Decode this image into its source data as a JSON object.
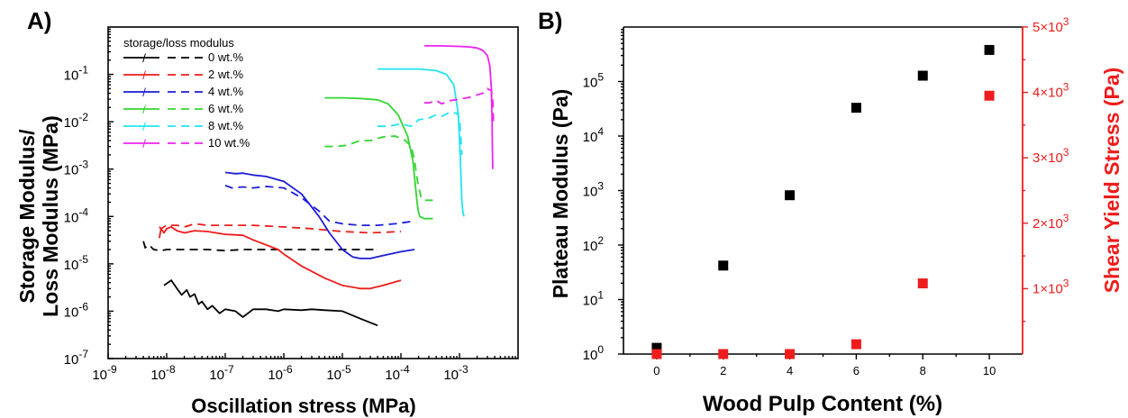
{
  "chart_data": [
    {
      "panel": "A)",
      "type": "line",
      "xlabel": "Oscillation stress (MPa)",
      "ylabel_lines": [
        "Storage Modulus/",
        "Loss Modulus (MPa)"
      ],
      "xscale": "log",
      "yscale": "log",
      "xlim": [
        1e-09,
        0.01
      ],
      "ylim": [
        1e-07,
        1
      ],
      "x_tick_labels": [
        "10",
        "10",
        "10",
        "10",
        "10",
        "10",
        "10",
        "10"
      ],
      "x_tick_exponents": [
        "-9",
        "-8",
        "-7",
        "-6",
        "-5",
        "-4",
        "-3",
        ""
      ],
      "x_ticks": [
        1e-09,
        1e-08,
        1e-07,
        1e-06,
        1e-05,
        0.0001,
        0.001
      ],
      "y_ticks": [
        1e-07,
        1e-06,
        1e-05,
        0.0001,
        0.001,
        0.01,
        0.1
      ],
      "y_tick_exponents": [
        "-7",
        "-6",
        "-5",
        "-4",
        "-3",
        "-2",
        "-1"
      ],
      "legend_title": "storage/loss modulus",
      "legend_placement": "top-left",
      "series": [
        {
          "name": "0 wt.%",
          "color": "#000000",
          "storage": {
            "x": [
              9e-09,
              1.2e-08,
              1.5e-08,
              1.8e-08,
              2.2e-08,
              2.5e-08,
              3e-08,
              3.5e-08,
              4e-08,
              5e-08,
              6e-08,
              8e-08,
              1e-07,
              1.5e-07,
              2e-07,
              3e-07,
              5e-07,
              8e-07,
              1e-06,
              2e-06,
              3e-06,
              5e-06,
              1e-05,
              2e-05,
              4e-05
            ],
            "y": [
              3.5e-06,
              4.5e-06,
              3e-06,
              2.2e-06,
              2.8e-06,
              2e-06,
              2.3e-06,
              1.4e-06,
              1.6e-06,
              1.1e-06,
              1.3e-06,
              9e-07,
              1.1e-06,
              1e-06,
              7.5e-07,
              1.1e-06,
              1.1e-06,
              1e-06,
              1.1e-06,
              1.05e-06,
              1.1e-06,
              1.05e-06,
              1e-06,
              7e-07,
              5e-07
            ]
          },
          "loss": {
            "x": [
              4e-09,
              4.3e-09,
              5e-09,
              6e-09,
              8e-09,
              1e-08,
              1.5e-08,
              2e-08,
              5e-08,
              1e-07,
              2e-07,
              5e-07,
              1e-06,
              3e-06,
              1e-05,
              4e-05
            ],
            "y": [
              3e-05,
              2.2e-05,
              2.5e-05,
              2e-05,
              1.9e-05,
              2e-05,
              2e-05,
              2e-05,
              2e-05,
              1.9e-05,
              2e-05,
              2e-05,
              2e-05,
              2e-05,
              2e-05,
              2e-05
            ]
          }
        },
        {
          "name": "2 wt.%",
          "color": "#ee1c1c",
          "storage": {
            "x": [
              7.5e-09,
              8e-09,
              9e-09,
              1e-08,
              1.2e-08,
              1.5e-08,
              2e-08,
              3e-08,
              5e-08,
              1e-07,
              2e-07,
              3e-07,
              5e-07,
              8e-07,
              1e-06,
              2e-06,
              5e-06,
              1e-05,
              2e-05,
              3e-05,
              5e-05,
              0.0001
            ],
            "y": [
              3.5e-05,
              5.5e-05,
              4.5e-05,
              5.5e-05,
              6e-05,
              5e-05,
              4.5e-05,
              5e-05,
              4.8e-05,
              4.2e-05,
              4e-05,
              3.2e-05,
              2.5e-05,
              2e-05,
              1.6e-05,
              9e-06,
              5e-06,
              3.5e-06,
              3e-06,
              3e-06,
              3.5e-06,
              4.5e-06
            ]
          },
          "loss": {
            "x": [
              7.5e-09,
              8e-09,
              1e-08,
              1.5e-08,
              2e-08,
              3e-08,
              5e-08,
              1e-07,
              3e-07,
              1e-06,
              3e-06,
              1e-05,
              3e-05,
              0.0001
            ],
            "y": [
              6e-05,
              5.5e-05,
              6.5e-05,
              6.5e-05,
              6e-05,
              7e-05,
              6.5e-05,
              6.5e-05,
              6.5e-05,
              6e-05,
              5.5e-05,
              4.8e-05,
              4.5e-05,
              4.8e-05
            ]
          }
        },
        {
          "name": "4 wt.%",
          "color": "#1c1cd6",
          "storage": {
            "x": [
              1e-07,
              1.5e-07,
              2e-07,
              3e-07,
              5e-07,
              1e-06,
              2e-06,
              4e-06,
              6e-06,
              1e-05,
              1.5e-05,
              2e-05,
              3e-05,
              5e-05,
              0.0001,
              0.00017
            ],
            "y": [
              0.00085,
              0.0008,
              0.00082,
              0.00075,
              0.0007,
              0.00055,
              0.0003,
              0.0001,
              4.5e-05,
              2e-05,
              1.4e-05,
              1.3e-05,
              1.3e-05,
              1.5e-05,
              1.8e-05,
              2e-05
            ]
          },
          "loss": {
            "x": [
              1e-07,
              1.3e-07,
              2e-07,
              3e-07,
              5e-07,
              1e-06,
              2e-06,
              4e-06,
              6e-06,
              1e-05,
              2e-05,
              4e-05,
              8e-05,
              0.00017
            ],
            "y": [
              0.00045,
              0.0004,
              0.00042,
              0.0004,
              0.00043,
              0.0004,
              0.00025,
              0.00013,
              8e-05,
              7e-05,
              6.5e-05,
              6.5e-05,
              7e-05,
              8e-05
            ]
          }
        },
        {
          "name": "6 wt.%",
          "color": "#33d633",
          "storage": {
            "x": [
              5e-06,
              1e-05,
              2e-05,
              4e-05,
              6e-05,
              9e-05,
              0.00013,
              0.00016,
              0.000175,
              0.000185,
              0.000195,
              0.00021,
              0.00025,
              0.00035
            ],
            "y": [
              0.032,
              0.032,
              0.031,
              0.029,
              0.024,
              0.014,
              0.005,
              0.0015,
              0.0005,
              0.00025,
              0.00014,
              0.0001,
              9e-05,
              9e-05
            ]
          },
          "loss": {
            "x": [
              5e-06,
              8e-06,
              1.2e-05,
              2e-05,
              3e-05,
              5e-05,
              8e-05,
              0.00012,
              0.00015,
              0.00017,
              0.00019,
              0.00022,
              0.00025,
              0.00035
            ],
            "y": [
              0.003,
              0.003,
              0.0032,
              0.004,
              0.004,
              0.0048,
              0.005,
              0.004,
              0.003,
              0.0016,
              0.0006,
              0.00025,
              0.00022,
              0.00022
            ]
          }
        },
        {
          "name": "8 wt.%",
          "color": "#22e4f0",
          "storage": {
            "x": [
              4e-05,
              0.0001,
              0.0002,
              0.0004,
              0.0006,
              0.0008,
              0.00095,
              0.00103,
              0.00107,
              0.0011,
              0.00115,
              0.0012
            ],
            "y": [
              0.13,
              0.13,
              0.13,
              0.12,
              0.1,
              0.06,
              0.015,
              0.002,
              0.0005,
              0.0002,
              0.00012,
              0.0001
            ]
          },
          "loss": {
            "x": [
              4e-05,
              6e-05,
              0.0001,
              0.00015,
              0.0002,
              0.0003,
              0.0004,
              0.0005,
              0.0007,
              0.0009,
              0.001,
              0.00105,
              0.0011
            ],
            "y": [
              0.008,
              0.008,
              0.009,
              0.008,
              0.011,
              0.012,
              0.014,
              0.013,
              0.016,
              0.015,
              0.012,
              0.005,
              0.002
            ]
          }
        },
        {
          "name": "10 wt.%",
          "color": "#ee22ee",
          "storage": {
            "x": [
              0.00025,
              0.0005,
              0.001,
              0.0015,
              0.002,
              0.0025,
              0.003,
              0.0033,
              0.0035,
              0.0036,
              0.00365,
              0.0037
            ],
            "y": [
              0.4,
              0.4,
              0.39,
              0.38,
              0.36,
              0.32,
              0.25,
              0.15,
              0.05,
              0.01,
              0.003,
              0.001
            ]
          },
          "loss": {
            "x": [
              0.00025,
              0.0003,
              0.0004,
              0.0005,
              0.0007,
              0.001,
              0.0015,
              0.002,
              0.0025,
              0.003,
              0.0035,
              0.0037,
              0.0038
            ],
            "y": [
              0.025,
              0.025,
              0.028,
              0.024,
              0.028,
              0.03,
              0.033,
              0.037,
              0.04,
              0.05,
              0.045,
              0.03,
              0.01
            ]
          }
        }
      ]
    },
    {
      "panel": "B)",
      "type": "scatter",
      "xlabel": "Wood Pulp Content (%)",
      "ylabel_left": "Plateau Modulus (Pa)",
      "ylabel_right": "Shear Yield Stress (Pa)",
      "x": [
        0,
        2,
        4,
        6,
        8,
        10
      ],
      "x_tick_labels": [
        "0",
        "2",
        "4",
        "6",
        "8",
        "10"
      ],
      "xlim": [
        -1,
        11
      ],
      "left_yscale": "log",
      "left_ylim": [
        1,
        1000000.0
      ],
      "left_y_ticks": [
        1,
        10,
        100,
        1000,
        10000,
        100000
      ],
      "left_y_tick_exponents": [
        "0",
        "1",
        "2",
        "3",
        "4",
        "5"
      ],
      "right_ylim": [
        0,
        5000
      ],
      "right_y_ticks": [
        1000,
        2000,
        3000,
        4000,
        5000
      ],
      "right_y_tick_labels": [
        "1×10",
        "2×10",
        "3×10",
        "4×10",
        "5×10"
      ],
      "right_y_tick_exponent": "3",
      "series": [
        {
          "name": "Plateau Modulus",
          "color": "#000000",
          "axis": "left",
          "values": [
            1.3,
            42,
            820,
            33000,
            128000,
            380000
          ]
        },
        {
          "name": "Shear Yield Stress",
          "color": "#ee1c1c",
          "axis": "right",
          "values": [
            0,
            0,
            0,
            150,
            1080,
            3950
          ]
        }
      ]
    }
  ]
}
